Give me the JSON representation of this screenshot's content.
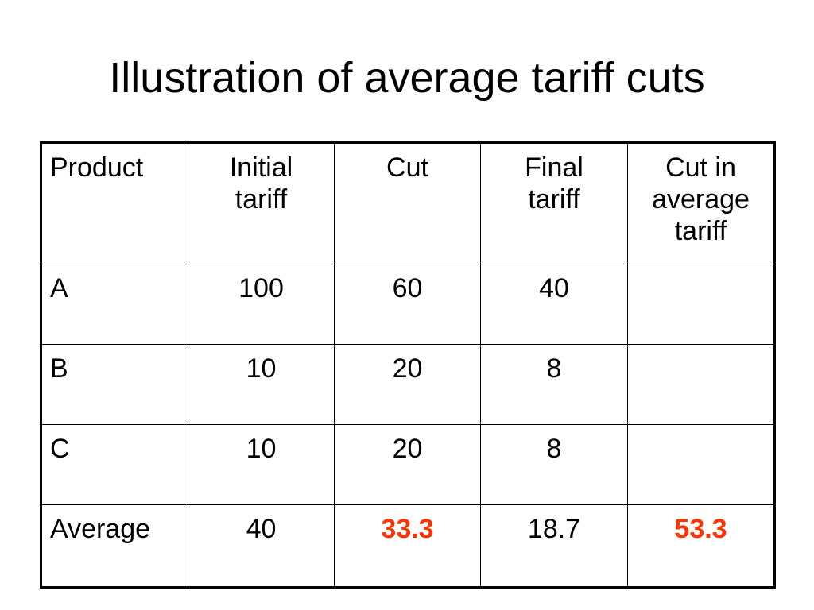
{
  "slide": {
    "title": "Illustration of average tariff cuts"
  },
  "table": {
    "headers": [
      {
        "lines": [
          "Product"
        ]
      },
      {
        "lines": [
          "Initial",
          "tariff"
        ]
      },
      {
        "lines": [
          "Cut"
        ]
      },
      {
        "lines": [
          "Final",
          "tariff"
        ]
      },
      {
        "lines": [
          "Cut in",
          "average",
          "tariff"
        ]
      }
    ],
    "rows": [
      {
        "product": "A",
        "initial": "100",
        "cut": "60",
        "final": "40",
        "avg_cut": ""
      },
      {
        "product": "B",
        "initial": "10",
        "cut": "20",
        "final": "8",
        "avg_cut": ""
      },
      {
        "product": "C",
        "initial": "10",
        "cut": "20",
        "final": "8",
        "avg_cut": ""
      },
      {
        "product": "Average",
        "initial": "40",
        "cut": "33.3",
        "final": "18.7",
        "avg_cut": "53.3"
      }
    ],
    "highlight_color": "#ff3300",
    "text_color": "#000000",
    "border_color": "#000000"
  }
}
